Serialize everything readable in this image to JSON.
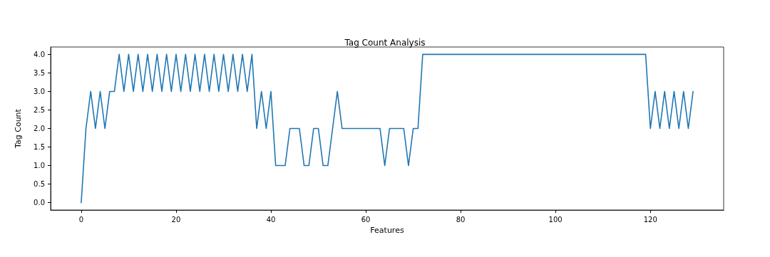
{
  "chart_data": {
    "type": "line",
    "title": "Tag Count Analysis",
    "xlabel": "Features",
    "ylabel": "Tag Count",
    "x": [
      0,
      1,
      2,
      3,
      4,
      5,
      6,
      7,
      8,
      9,
      10,
      11,
      12,
      13,
      14,
      15,
      16,
      17,
      18,
      19,
      20,
      21,
      22,
      23,
      24,
      25,
      26,
      27,
      28,
      29,
      30,
      31,
      32,
      33,
      34,
      35,
      36,
      37,
      38,
      39,
      40,
      41,
      42,
      43,
      44,
      45,
      46,
      47,
      48,
      49,
      50,
      51,
      52,
      53,
      54,
      55,
      56,
      57,
      58,
      59,
      60,
      61,
      62,
      63,
      64,
      65,
      66,
      67,
      68,
      69,
      70,
      71,
      72,
      73,
      74,
      75,
      76,
      77,
      78,
      79,
      80,
      81,
      82,
      83,
      84,
      85,
      86,
      87,
      88,
      89,
      90,
      91,
      92,
      93,
      94,
      95,
      96,
      97,
      98,
      99,
      100,
      101,
      102,
      103,
      104,
      105,
      106,
      107,
      108,
      109,
      110,
      111,
      112,
      113,
      114,
      115,
      116,
      117,
      118,
      119,
      120,
      121,
      122,
      123,
      124,
      125,
      126,
      127,
      128,
      129
    ],
    "series": [
      {
        "color": "#1f77b4",
        "values": [
          0,
          2,
          3,
          2,
          3,
          2,
          3,
          3,
          4,
          3,
          4,
          3,
          4,
          3,
          4,
          3,
          4,
          3,
          4,
          3,
          4,
          3,
          4,
          3,
          4,
          3,
          4,
          3,
          4,
          3,
          4,
          3,
          4,
          3,
          4,
          3,
          4,
          2,
          3,
          2,
          3,
          1,
          1,
          1,
          2,
          2,
          2,
          1,
          1,
          2,
          2,
          1,
          1,
          2,
          3,
          2,
          2,
          2,
          2,
          2,
          2,
          2,
          2,
          2,
          1,
          2,
          2,
          2,
          2,
          1,
          2,
          2,
          4,
          4,
          4,
          4,
          4,
          4,
          4,
          4,
          4,
          4,
          4,
          4,
          4,
          4,
          4,
          4,
          4,
          4,
          4,
          4,
          4,
          4,
          4,
          4,
          4,
          4,
          4,
          4,
          4,
          4,
          4,
          4,
          4,
          4,
          4,
          4,
          4,
          4,
          4,
          4,
          4,
          4,
          4,
          4,
          4,
          4,
          4,
          4,
          2,
          3,
          2,
          3,
          2,
          3,
          2,
          3,
          2,
          3
        ]
      }
    ],
    "xlim": [
      -6.45,
      135.45
    ],
    "xticks": [
      0,
      20,
      40,
      60,
      80,
      100,
      120
    ],
    "ylim": [
      -0.2,
      4.2
    ],
    "yticks": [
      {
        "value": 0,
        "label": "0.0"
      },
      {
        "value": 0.5,
        "label": "0.5"
      },
      {
        "value": 1,
        "label": "1.0"
      },
      {
        "value": 1.5,
        "label": "1.5"
      },
      {
        "value": 2,
        "label": "2.0"
      },
      {
        "value": 2.5,
        "label": "2.5"
      },
      {
        "value": 3,
        "label": "3.0"
      },
      {
        "value": 3.5,
        "label": "3.5"
      },
      {
        "value": 4,
        "label": "4.0"
      }
    ],
    "grid": false,
    "marker": "none",
    "line_style": "solid"
  }
}
